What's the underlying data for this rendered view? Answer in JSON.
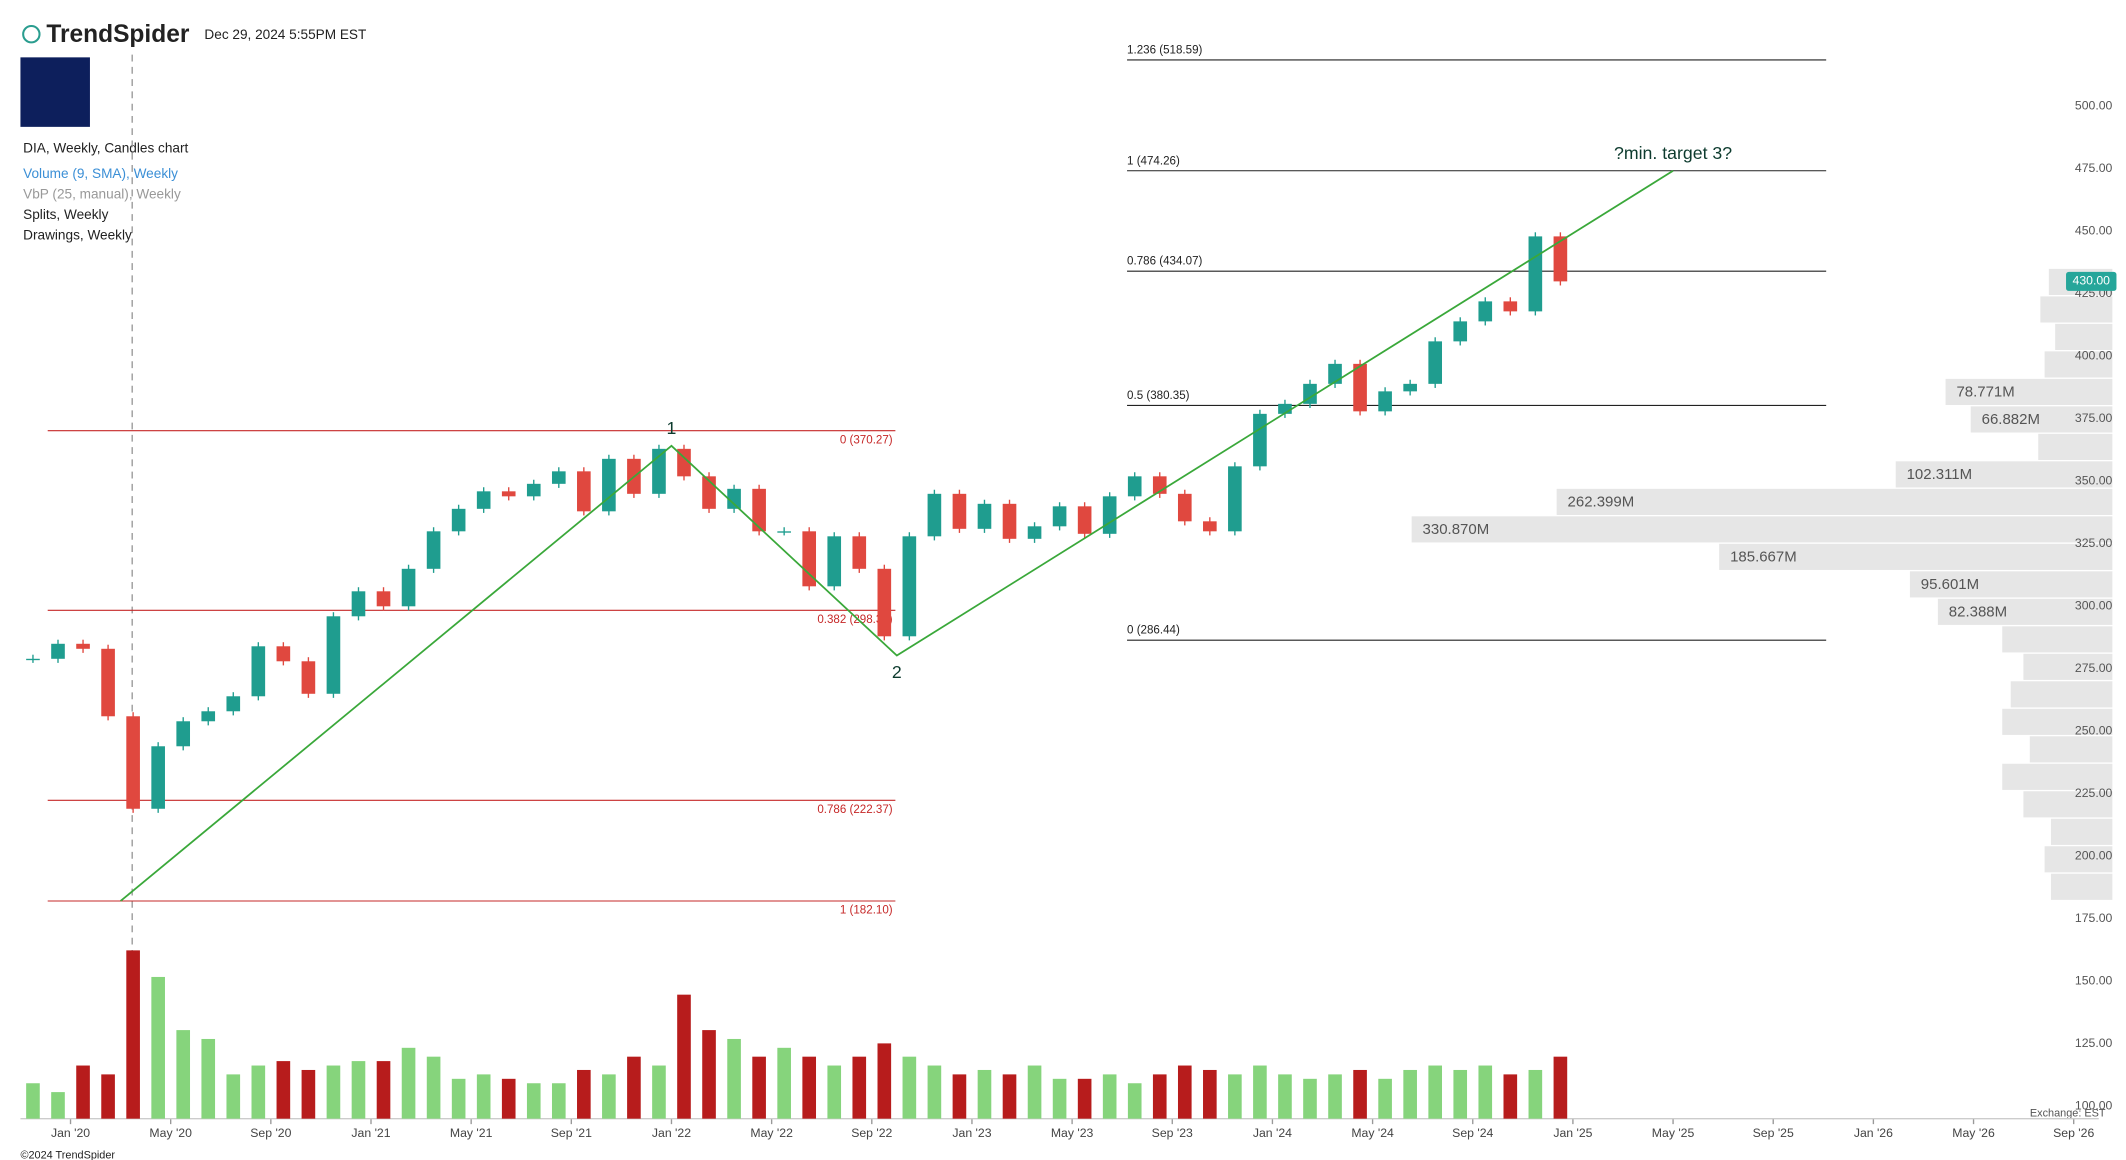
{
  "header": {
    "brand": "TrendSpider",
    "timestamp": "Dec 29, 2024 5:55PM EST"
  },
  "legend": [
    "DIA, Weekly, Candles chart",
    "Volume (9, SMA), Weekly",
    "VbP (25, manual), Weekly",
    "Splits, Weekly",
    "Drawings, Weekly"
  ],
  "footer": {
    "copyright": "©2024 TrendSpider",
    "exchange": "Exchange: EST"
  },
  "chart_data": {
    "type": "candlestick",
    "x": [
      "2019-11",
      "2019-12",
      "2020-01",
      "2020-02",
      "2020-03",
      "2020-04",
      "2020-05",
      "2020-06",
      "2020-07",
      "2020-08",
      "2020-09",
      "2020-10",
      "2020-11",
      "2020-12",
      "2021-01",
      "2021-02",
      "2021-03",
      "2021-04",
      "2021-05",
      "2021-06",
      "2021-07",
      "2021-08",
      "2021-09",
      "2021-10",
      "2021-11",
      "2021-12",
      "2022-01",
      "2022-02",
      "2022-03",
      "2022-04",
      "2022-05",
      "2022-06",
      "2022-07",
      "2022-08",
      "2022-09",
      "2022-10",
      "2022-11",
      "2022-12",
      "2023-01",
      "2023-02",
      "2023-03",
      "2023-04",
      "2023-05",
      "2023-06",
      "2023-07",
      "2023-08",
      "2023-09",
      "2023-10",
      "2023-11",
      "2023-12",
      "2024-01",
      "2024-02",
      "2024-03",
      "2024-04",
      "2024-05",
      "2024-06",
      "2024-07",
      "2024-08",
      "2024-09",
      "2024-10",
      "2024-11",
      "2024-12"
    ],
    "close": [
      279,
      285,
      283,
      256,
      219,
      244,
      254,
      258,
      264,
      284,
      278,
      265,
      296,
      306,
      300,
      315,
      330,
      339,
      346,
      344,
      349,
      354,
      338,
      359,
      345,
      363,
      352,
      339,
      347,
      330,
      330,
      308,
      328,
      315,
      288,
      328,
      345,
      331,
      341,
      327,
      332,
      340,
      329,
      344,
      352,
      345,
      334,
      330,
      356,
      377,
      381,
      389,
      397,
      378,
      386,
      389,
      406,
      414,
      422,
      418,
      448,
      430
    ],
    "volume": [
      8,
      6,
      12,
      10,
      38,
      32,
      20,
      18,
      10,
      12,
      13,
      11,
      12,
      13,
      13,
      16,
      14,
      9,
      10,
      9,
      8,
      8,
      11,
      10,
      14,
      12,
      28,
      20,
      18,
      14,
      16,
      14,
      12,
      14,
      17,
      14,
      12,
      10,
      11,
      10,
      12,
      9,
      9,
      10,
      8,
      10,
      12,
      11,
      10,
      12,
      10,
      9,
      10,
      11,
      9,
      11,
      12,
      11,
      12,
      10,
      11,
      14
    ],
    "xlim": [
      "2019-11",
      "2026-10"
    ],
    "ylim": [
      95,
      525
    ],
    "volume_ylim": [
      0,
      40
    ],
    "yticks": [
      {
        "value": 500,
        "label": "500.00"
      },
      {
        "value": 475,
        "label": "475.00"
      },
      {
        "value": 450,
        "label": "450.00"
      },
      {
        "value": 425,
        "label": "425.00"
      },
      {
        "value": 400,
        "label": "400.00"
      },
      {
        "value": 375,
        "label": "375.00"
      },
      {
        "value": 350,
        "label": "350.00"
      },
      {
        "value": 325,
        "label": "325.00"
      },
      {
        "value": 300,
        "label": "300.00"
      },
      {
        "value": 275,
        "label": "275.00"
      },
      {
        "value": 250,
        "label": "250.00"
      },
      {
        "value": 225,
        "label": "225.00"
      },
      {
        "value": 200,
        "label": "200.00"
      },
      {
        "value": 175,
        "label": "175.00"
      },
      {
        "value": 150,
        "label": "150.00"
      },
      {
        "value": 125,
        "label": "125.00"
      },
      {
        "value": 100,
        "label": "100.00"
      }
    ],
    "xticks": [
      {
        "value": "2020-01",
        "label": "Jan '20"
      },
      {
        "value": "2020-05",
        "label": "May '20"
      },
      {
        "value": "2020-09",
        "label": "Sep '20"
      },
      {
        "value": "2021-01",
        "label": "Jan '21"
      },
      {
        "value": "2021-05",
        "label": "May '21"
      },
      {
        "value": "2021-09",
        "label": "Sep '21"
      },
      {
        "value": "2022-01",
        "label": "Jan '22"
      },
      {
        "value": "2022-05",
        "label": "May '22"
      },
      {
        "value": "2022-09",
        "label": "Sep '22"
      },
      {
        "value": "2023-01",
        "label": "Jan '23"
      },
      {
        "value": "2023-05",
        "label": "May '23"
      },
      {
        "value": "2023-09",
        "label": "Sep '23"
      },
      {
        "value": "2024-01",
        "label": "Jan '24"
      },
      {
        "value": "2024-05",
        "label": "May '24"
      },
      {
        "value": "2024-09",
        "label": "Sep '24"
      },
      {
        "value": "2025-01",
        "label": "Jan '25"
      },
      {
        "value": "2025-05",
        "label": "May '25"
      },
      {
        "value": "2025-09",
        "label": "Sep '25"
      },
      {
        "value": "2026-01",
        "label": "Jan '26"
      },
      {
        "value": "2026-05",
        "label": "May '26"
      },
      {
        "value": "2026-09",
        "label": "Sep '26"
      }
    ],
    "up_color": "#1f9d8f",
    "down_color": "#e0483f",
    "volume_up_color": "#86d47c",
    "volume_down_color": "#b71c1c",
    "last_price": {
      "value": 430,
      "label": "430.00",
      "color": "#26a69a"
    },
    "fib_retracement": {
      "color": "#c62828",
      "levels": [
        {
          "price": 370.27,
          "label": "0 (370.27)"
        },
        {
          "price": 298.39,
          "label": "0.382 (298.39)"
        },
        {
          "price": 222.37,
          "label": "0.786 (222.37)"
        },
        {
          "price": 182.1,
          "label": "1 (182.10)"
        }
      ]
    },
    "fib_extension": {
      "color": "#222222",
      "levels": [
        {
          "price": 518.59,
          "label": "1.236 (518.59)"
        },
        {
          "price": 474.26,
          "label": "1 (474.26)"
        },
        {
          "price": 434.07,
          "label": "0.786 (434.07)"
        },
        {
          "price": 380.35,
          "label": "0.5 (380.35)"
        },
        {
          "price": 286.44,
          "label": "0 (286.44)"
        }
      ]
    },
    "waves": {
      "color": "#3aa83a",
      "points": [
        {
          "x": "2020-03",
          "price": 182.1
        },
        {
          "x": "2022-01",
          "price": 364.2,
          "label": "1"
        },
        {
          "x": "2022-10",
          "price": 280.3,
          "label": "2"
        },
        {
          "x": "2025-05",
          "price": 474.26
        }
      ]
    },
    "annotation": "?min. target 3?",
    "volume_profile": {
      "color": "#e6e6e6",
      "bins": [
        182,
        193,
        204,
        215,
        226,
        237,
        248,
        259,
        270,
        281,
        292,
        303,
        314,
        325,
        336,
        347,
        358,
        369,
        380,
        391,
        402,
        413,
        424,
        435
      ],
      "values": [
        29,
        32,
        29,
        42,
        52,
        39,
        52,
        48,
        42,
        52,
        82.388,
        95.601,
        185.667,
        330.87,
        262.399,
        102.311,
        35,
        66.882,
        78.771,
        32,
        27,
        34,
        30
      ],
      "value_labels": [
        null,
        null,
        null,
        null,
        null,
        null,
        null,
        null,
        null,
        null,
        "82.388M",
        "95.601M",
        "185.667M",
        "330.870M",
        "262.399M",
        "102.311M",
        null,
        "66.882M",
        "78.771M",
        null,
        null,
        null,
        null
      ]
    }
  }
}
